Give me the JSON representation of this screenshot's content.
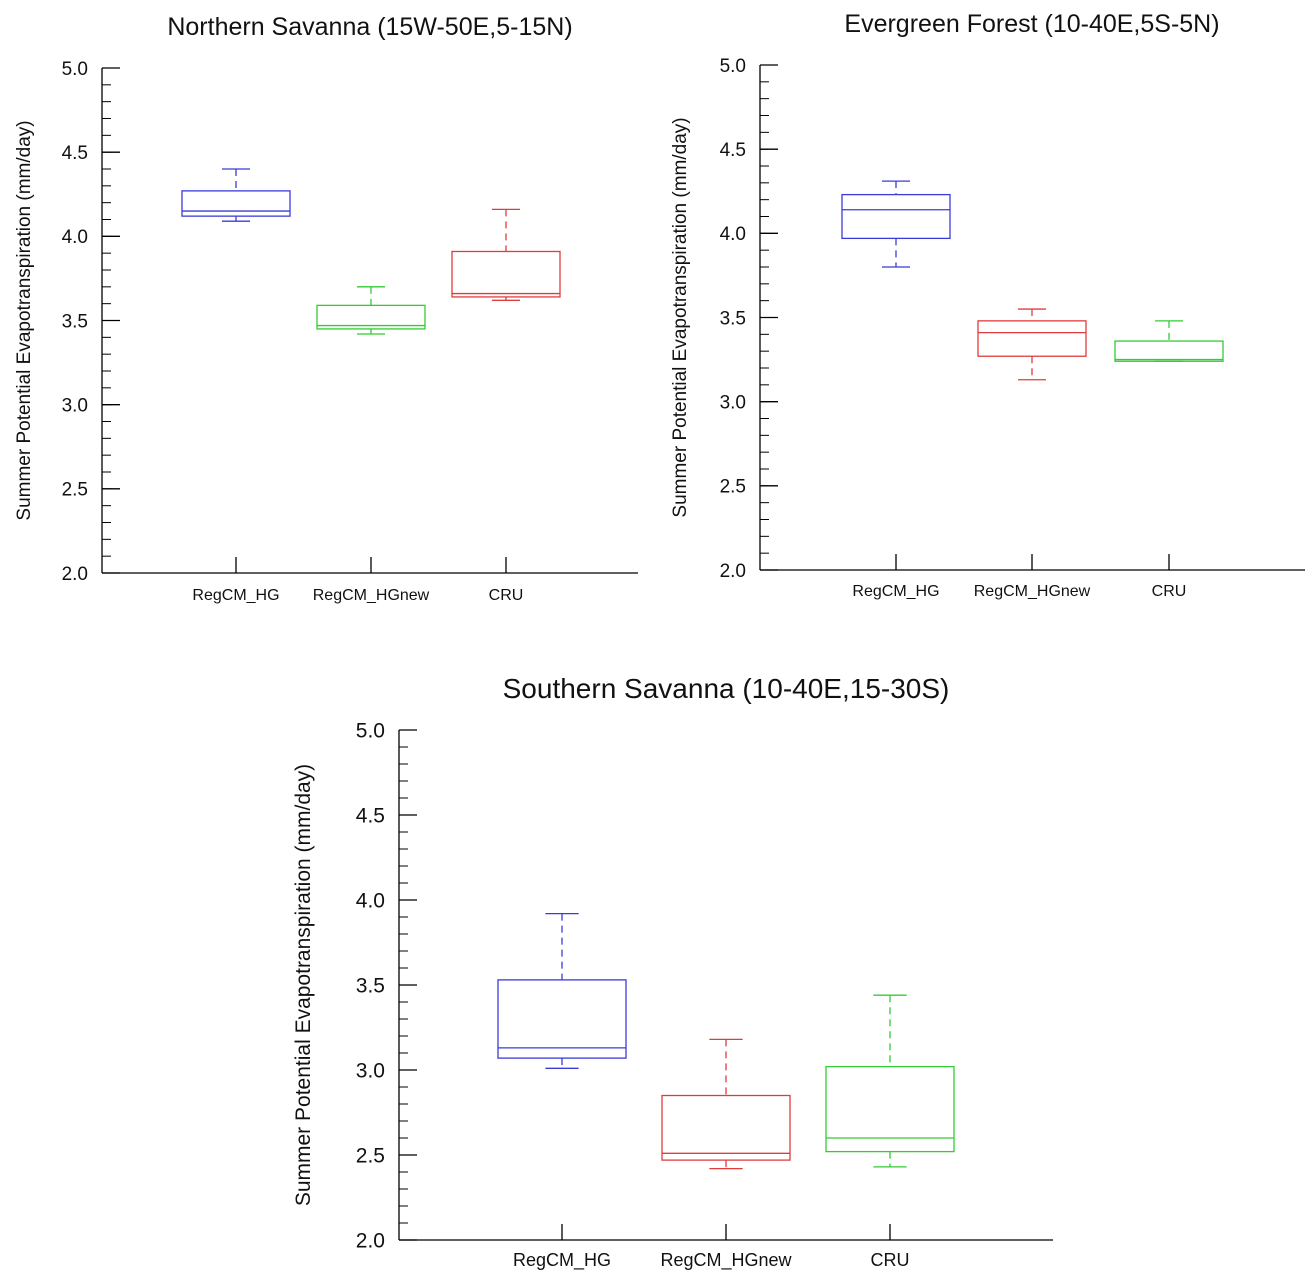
{
  "chart_data": [
    {
      "type": "box",
      "title": "Northern Savanna (15W-50E,5-15N)",
      "xlabel": "",
      "ylabel": "Summer Potential Evapotranspiration (mm/day)",
      "ylim": [
        2.0,
        5.0
      ],
      "yticks": [
        "2.0",
        "2.5",
        "3.0",
        "3.5",
        "4.0",
        "4.5",
        "5.0"
      ],
      "grid": false,
      "categories": [
        "RegCM_HG",
        "RegCM_HGnew",
        "CRU"
      ],
      "boxes": [
        {
          "name": "RegCM_HG",
          "color": "#3b3bd9",
          "min": 4.09,
          "q1": 4.12,
          "median": 4.15,
          "q3": 4.27,
          "max": 4.4
        },
        {
          "name": "RegCM_HGnew",
          "color": "#33cc33",
          "min": 3.42,
          "q1": 3.45,
          "median": 3.47,
          "q3": 3.59,
          "max": 3.7
        },
        {
          "name": "CRU",
          "color": "#e03c3c",
          "min": 3.62,
          "q1": 3.64,
          "median": 3.66,
          "q3": 3.91,
          "max": 4.16
        }
      ]
    },
    {
      "type": "box",
      "title": "Evergreen Forest (10-40E,5S-5N)",
      "xlabel": "",
      "ylabel": "Summer Potential Evapotranspiration (mm/day)",
      "ylim": [
        2.0,
        5.0
      ],
      "yticks": [
        "2.0",
        "2.5",
        "3.0",
        "3.5",
        "4.0",
        "4.5",
        "5.0"
      ],
      "grid": false,
      "categories": [
        "RegCM_HG",
        "RegCM_HGnew",
        "CRU"
      ],
      "boxes": [
        {
          "name": "RegCM_HG",
          "color": "#3b3bd9",
          "min": 3.8,
          "q1": 3.97,
          "median": 4.14,
          "q3": 4.23,
          "max": 4.31
        },
        {
          "name": "RegCM_HGnew",
          "color": "#e03c3c",
          "min": 3.13,
          "q1": 3.27,
          "median": 3.41,
          "q3": 3.48,
          "max": 3.55
        },
        {
          "name": "CRU",
          "color": "#33cc33",
          "min": 3.24,
          "q1": 3.24,
          "median": 3.25,
          "q3": 3.36,
          "max": 3.48
        }
      ]
    },
    {
      "type": "box",
      "title": "Southern Savanna (10-40E,15-30S)",
      "xlabel": "",
      "ylabel": "Summer Potential Evapotranspiration (mm/day)",
      "ylim": [
        2.0,
        5.0
      ],
      "yticks": [
        "2.0",
        "2.5",
        "3.0",
        "3.5",
        "4.0",
        "4.5",
        "5.0"
      ],
      "grid": false,
      "categories": [
        "RegCM_HG",
        "RegCM_HGnew",
        "CRU"
      ],
      "boxes": [
        {
          "name": "RegCM_HG",
          "color": "#3b3bd9",
          "min": 3.01,
          "q1": 3.07,
          "median": 3.13,
          "q3": 3.53,
          "max": 3.92
        },
        {
          "name": "RegCM_HGnew",
          "color": "#e03c3c",
          "min": 2.42,
          "q1": 2.47,
          "median": 2.51,
          "q3": 2.85,
          "max": 3.18
        },
        {
          "name": "CRU",
          "color": "#33cc33",
          "min": 2.43,
          "q1": 2.52,
          "median": 2.6,
          "q3": 3.02,
          "max": 3.44
        }
      ]
    }
  ]
}
